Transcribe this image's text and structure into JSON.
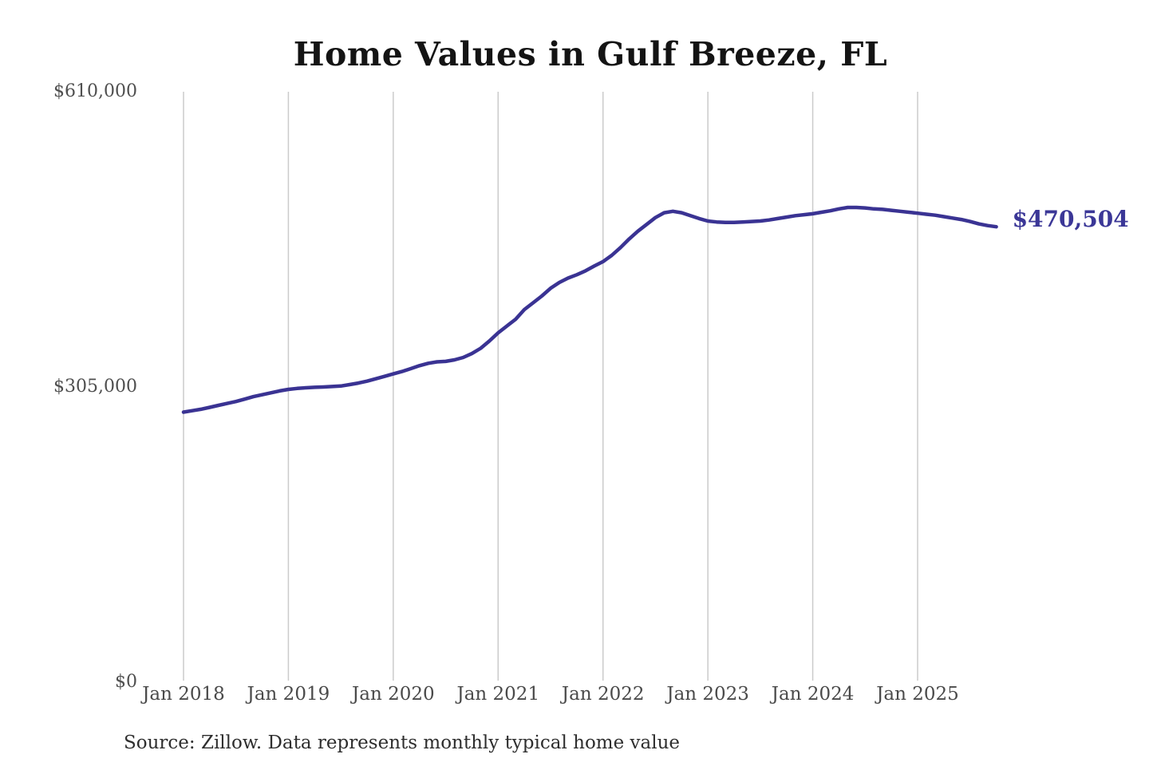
{
  "page": {
    "background_color": "#ffffff"
  },
  "chart_data": {
    "type": "line",
    "title": "Home Values in Gulf Breeze, FL",
    "source_note": "Source: Zillow. Data represents monthly typical home value",
    "xlabel": "",
    "ylabel": "",
    "ylim": [
      0,
      610000
    ],
    "grid": "vertical-only",
    "gridline_color": "#cbcbcb",
    "legend_position": "none",
    "y_ticks": [
      {
        "value": 0,
        "label": "$0"
      },
      {
        "value": 305000,
        "label": "$305,000"
      },
      {
        "value": 610000,
        "label": "$610,000"
      }
    ],
    "x_ticks": [
      {
        "month_index": 0,
        "label": "Jan 2018"
      },
      {
        "month_index": 12,
        "label": "Jan 2019"
      },
      {
        "month_index": 24,
        "label": "Jan 2020"
      },
      {
        "month_index": 36,
        "label": "Jan 2021"
      },
      {
        "month_index": 48,
        "label": "Jan 2022"
      },
      {
        "month_index": 60,
        "label": "Jan 2023"
      },
      {
        "month_index": 72,
        "label": "Jan 2024"
      },
      {
        "month_index": 84,
        "label": "Jan 2025"
      }
    ],
    "series": [
      {
        "name": "Monthly typical home value",
        "color": "#3a3393",
        "end_label": "$470,504",
        "start_month": "2018-01",
        "x_unit": "month",
        "values": [
          279000,
          280500,
          282000,
          284000,
          286000,
          288000,
          290000,
          292500,
          295000,
          297000,
          299000,
          301000,
          302500,
          303500,
          304200,
          304700,
          305000,
          305500,
          306000,
          307500,
          309000,
          311000,
          313500,
          316000,
          318500,
          321000,
          324000,
          327000,
          329500,
          331000,
          331500,
          333000,
          335500,
          339500,
          345000,
          352500,
          361000,
          368000,
          375000,
          385000,
          392000,
          399000,
          407000,
          413000,
          417500,
          421000,
          425000,
          430000,
          434500,
          441000,
          449000,
          458000,
          466000,
          473000,
          480000,
          485000,
          486500,
          485000,
          482000,
          479000,
          476500,
          475500,
          475000,
          475000,
          475500,
          476000,
          476500,
          477500,
          479000,
          480500,
          482000,
          483000,
          484000,
          485500,
          487000,
          489000,
          490500,
          490500,
          490000,
          489000,
          488500,
          487500,
          486500,
          485500,
          484500,
          483500,
          482500,
          481000,
          479500,
          478000,
          476000,
          473500,
          471800,
          470504
        ]
      }
    ]
  }
}
